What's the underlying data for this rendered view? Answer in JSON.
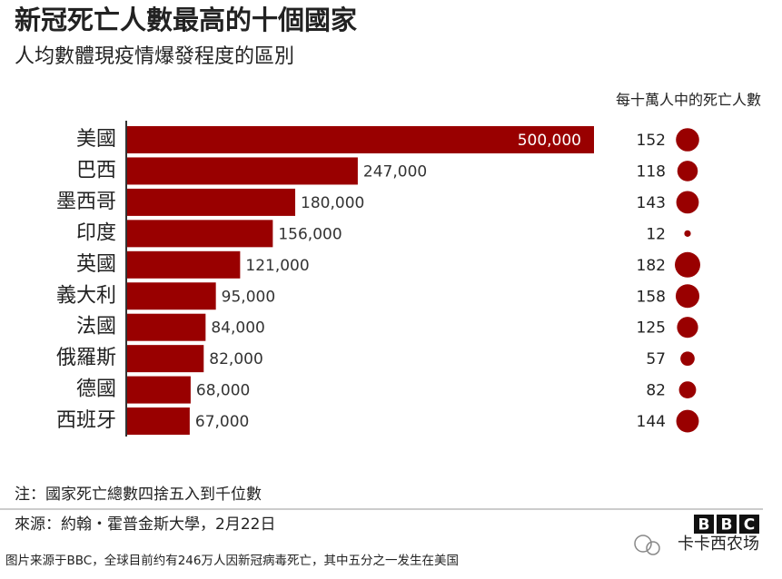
{
  "chart_data": {
    "type": "bar",
    "title": "新冠死亡人數最高的十個國家",
    "subtitle": "人均數體現疫情爆發程度的區別",
    "categories": [
      "美國",
      "巴西",
      "墨西哥",
      "印度",
      "英國",
      "義大利",
      "法國",
      "俄羅斯",
      "德國",
      "西班牙"
    ],
    "values": [
      500000,
      247000,
      180000,
      156000,
      121000,
      95000,
      84000,
      82000,
      68000,
      67000
    ],
    "value_labels": [
      "500,000",
      "247,000",
      "180,000",
      "156,000",
      "121,000",
      "95,000",
      "84,000",
      "82,000",
      "68,000",
      "67,000"
    ],
    "color": "#990000",
    "per_capita": {
      "label": "每十萬人中的死亡人數",
      "values": [
        152,
        118,
        143,
        12,
        182,
        158,
        125,
        57,
        82,
        144
      ],
      "color": "#990000"
    }
  },
  "note": "注：國家死亡總數四捨五入到千位數",
  "source": "來源：約翰・霍普金斯大學，2月22日",
  "logo": [
    "B",
    "B",
    "C"
  ],
  "watermark": "卡卡西农场",
  "caption": "图片来源于BBC，全球目前约有246万人因新冠病毒死亡，其中五分之一发生在美国"
}
